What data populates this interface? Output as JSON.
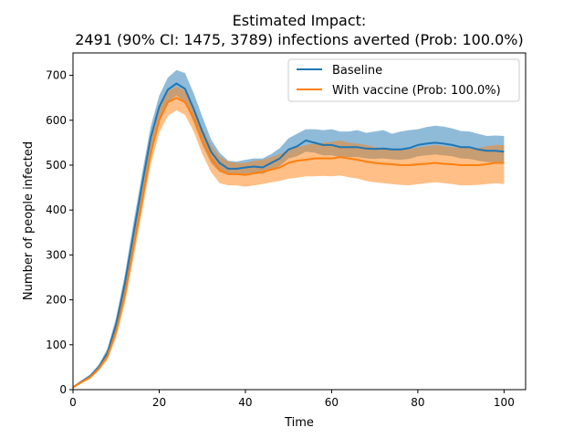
{
  "chart_data": {
    "type": "line",
    "title": "Estimated Impact:",
    "subtitle": "2491 (90% CI: 1475, 3789) infections averted (Prob: 100.0%)",
    "xlabel": "Time",
    "ylabel": "Number of people infected",
    "xlim": [
      0,
      105
    ],
    "ylim": [
      0,
      750
    ],
    "xticks": [
      0,
      20,
      40,
      60,
      80,
      100
    ],
    "yticks": [
      0,
      100,
      200,
      300,
      400,
      500,
      600,
      700
    ],
    "grid": false,
    "legend_position": "top-right",
    "x": [
      0,
      2,
      4,
      6,
      8,
      10,
      12,
      14,
      16,
      18,
      20,
      22,
      24,
      26,
      28,
      30,
      32,
      34,
      36,
      38,
      40,
      42,
      44,
      46,
      48,
      50,
      52,
      54,
      56,
      58,
      60,
      62,
      64,
      66,
      68,
      70,
      72,
      74,
      76,
      78,
      80,
      82,
      84,
      86,
      88,
      90,
      92,
      94,
      96,
      98,
      100
    ],
    "series": [
      {
        "name": "Baseline",
        "color": "#1f77b4",
        "band_color": "#1f77b4",
        "values": [
          5,
          18,
          30,
          50,
          82,
          145,
          235,
          345,
          455,
          560,
          630,
          668,
          682,
          670,
          625,
          575,
          530,
          505,
          492,
          492,
          495,
          497,
          495,
          505,
          515,
          535,
          542,
          555,
          550,
          545,
          545,
          540,
          540,
          540,
          537,
          536,
          537,
          535,
          535,
          538,
          545,
          548,
          550,
          548,
          545,
          540,
          540,
          535,
          532,
          532,
          530
        ],
        "lower": [
          3,
          15,
          26,
          45,
          72,
          130,
          215,
          325,
          430,
          530,
          600,
          640,
          655,
          640,
          595,
          545,
          505,
          485,
          478,
          478,
          480,
          483,
          480,
          490,
          498,
          515,
          520,
          530,
          528,
          522,
          522,
          518,
          518,
          518,
          515,
          514,
          515,
          513,
          512,
          514,
          520,
          522,
          524,
          522,
          520,
          515,
          514,
          510,
          507,
          506,
          505
        ],
        "upper": [
          7,
          21,
          34,
          56,
          92,
          160,
          255,
          370,
          480,
          585,
          655,
          695,
          712,
          705,
          660,
          608,
          558,
          528,
          510,
          508,
          512,
          515,
          515,
          525,
          538,
          560,
          570,
          580,
          580,
          578,
          580,
          575,
          575,
          578,
          572,
          575,
          578,
          570,
          575,
          578,
          580,
          585,
          588,
          586,
          582,
          576,
          575,
          570,
          565,
          566,
          565
        ]
      },
      {
        "name": "With vaccine (Prob: 100.0%)",
        "color": "#ff7f0e",
        "band_color": "#ff7f0e",
        "values": [
          5,
          17,
          28,
          47,
          75,
          130,
          210,
          315,
          420,
          525,
          600,
          640,
          650,
          640,
          605,
          555,
          515,
          490,
          480,
          480,
          478,
          482,
          485,
          490,
          495,
          505,
          510,
          512,
          515,
          515,
          515,
          518,
          515,
          512,
          508,
          505,
          503,
          502,
          500,
          500,
          502,
          503,
          505,
          503,
          502,
          500,
          500,
          500,
          502,
          505,
          505
        ],
        "lower": [
          3,
          14,
          24,
          42,
          66,
          115,
          190,
          290,
          395,
          500,
          572,
          610,
          622,
          612,
          575,
          525,
          485,
          460,
          455,
          455,
          452,
          455,
          458,
          462,
          465,
          470,
          472,
          475,
          475,
          476,
          475,
          477,
          473,
          470,
          465,
          462,
          460,
          458,
          456,
          455,
          458,
          460,
          462,
          460,
          458,
          455,
          455,
          456,
          458,
          460,
          458
        ],
        "upper": [
          7,
          20,
          32,
          52,
          84,
          145,
          230,
          340,
          445,
          550,
          625,
          665,
          675,
          665,
          632,
          582,
          545,
          520,
          508,
          505,
          505,
          510,
          512,
          518,
          525,
          535,
          540,
          545,
          548,
          550,
          552,
          555,
          550,
          548,
          545,
          540,
          538,
          537,
          535,
          535,
          540,
          542,
          545,
          542,
          540,
          538,
          540,
          538,
          542,
          545,
          545
        ]
      }
    ]
  }
}
